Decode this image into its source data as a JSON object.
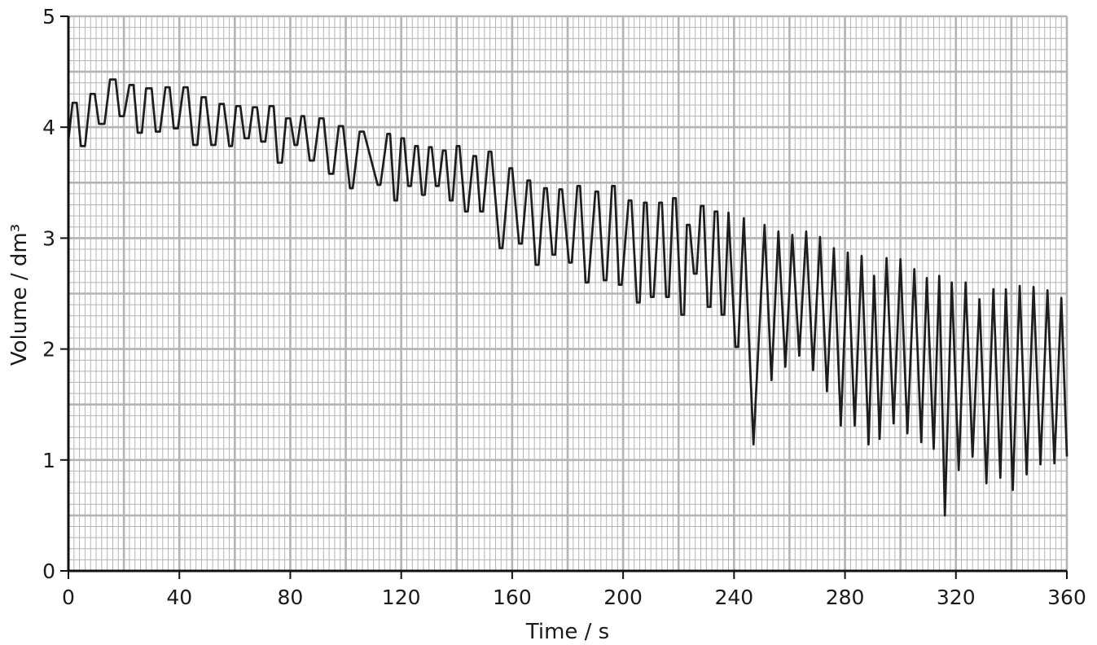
{
  "chart_data": {
    "type": "line",
    "xlabel": "Time / s",
    "ylabel": "Volume / dm³",
    "xlim": [
      0,
      360
    ],
    "ylim": [
      0,
      5
    ],
    "x_ticks": [
      "0",
      "40",
      "80",
      "120",
      "160",
      "200",
      "240",
      "280",
      "320",
      "360"
    ],
    "y_ticks": [
      "0",
      "1",
      "2",
      "3",
      "4",
      "5"
    ],
    "grid": "on",
    "grid_minor_step": {
      "x": 2,
      "y": 0.1
    },
    "grid_major_step": {
      "x": 20,
      "y": 0.5
    },
    "colors": {
      "line": "#1e1e1e",
      "grid": "#b4b4b4",
      "axis": "#111111"
    },
    "series": [
      {
        "points": [
          [
            0,
            3.88
          ],
          [
            1.5,
            4.22
          ],
          [
            3,
            4.22
          ],
          [
            4.5,
            3.83
          ],
          [
            6,
            3.83
          ],
          [
            8,
            4.3
          ],
          [
            9.5,
            4.3
          ],
          [
            11,
            4.03
          ],
          [
            13,
            4.03
          ],
          [
            15,
            4.43
          ],
          [
            17,
            4.43
          ],
          [
            18.5,
            4.1
          ],
          [
            20,
            4.1
          ],
          [
            22,
            4.38
          ],
          [
            23.5,
            4.38
          ],
          [
            25,
            3.95
          ],
          [
            26.5,
            3.95
          ],
          [
            28,
            4.35
          ],
          [
            30,
            4.35
          ],
          [
            31.5,
            3.96
          ],
          [
            33,
            3.96
          ],
          [
            35,
            4.36
          ],
          [
            36.5,
            4.36
          ],
          [
            38,
            3.99
          ],
          [
            39.5,
            3.99
          ],
          [
            41.5,
            4.36
          ],
          [
            43,
            4.36
          ],
          [
            45,
            3.84
          ],
          [
            46.5,
            3.84
          ],
          [
            48,
            4.27
          ],
          [
            49.5,
            4.27
          ],
          [
            51.5,
            3.84
          ],
          [
            53,
            3.84
          ],
          [
            54.5,
            4.21
          ],
          [
            56,
            4.21
          ],
          [
            58,
            3.83
          ],
          [
            59,
            3.83
          ],
          [
            60.5,
            4.19
          ],
          [
            62,
            4.19
          ],
          [
            63.5,
            3.9
          ],
          [
            65,
            3.9
          ],
          [
            66.5,
            4.18
          ],
          [
            68,
            4.18
          ],
          [
            69.5,
            3.87
          ],
          [
            71,
            3.87
          ],
          [
            72.5,
            4.19
          ],
          [
            74,
            4.19
          ],
          [
            75.5,
            3.68
          ],
          [
            77,
            3.68
          ],
          [
            78.5,
            4.08
          ],
          [
            80,
            4.08
          ],
          [
            81.5,
            3.84
          ],
          [
            82.5,
            3.84
          ],
          [
            84,
            4.1
          ],
          [
            85,
            4.1
          ],
          [
            87,
            3.7
          ],
          [
            88.5,
            3.7
          ],
          [
            90.5,
            4.08
          ],
          [
            92,
            4.08
          ],
          [
            94,
            3.58
          ],
          [
            95.5,
            3.58
          ],
          [
            97.5,
            4.01
          ],
          [
            99,
            4.01
          ],
          [
            101.5,
            3.45
          ],
          [
            102.5,
            3.45
          ],
          [
            105,
            3.96
          ],
          [
            106.5,
            3.96
          ],
          [
            111.5,
            3.48
          ],
          [
            112.5,
            3.48
          ],
          [
            115,
            3.94
          ],
          [
            116,
            3.94
          ],
          [
            117.5,
            3.34
          ],
          [
            118.5,
            3.34
          ],
          [
            120,
            3.9
          ],
          [
            121,
            3.9
          ],
          [
            122.5,
            3.47
          ],
          [
            123.5,
            3.47
          ],
          [
            125,
            3.83
          ],
          [
            126,
            3.83
          ],
          [
            127.5,
            3.39
          ],
          [
            128.5,
            3.39
          ],
          [
            130,
            3.82
          ],
          [
            131,
            3.82
          ],
          [
            132.5,
            3.47
          ],
          [
            133.5,
            3.47
          ],
          [
            135,
            3.79
          ],
          [
            136,
            3.79
          ],
          [
            137.5,
            3.34
          ],
          [
            138.5,
            3.34
          ],
          [
            140,
            3.83
          ],
          [
            141,
            3.83
          ],
          [
            143,
            3.24
          ],
          [
            144,
            3.24
          ],
          [
            146,
            3.74
          ],
          [
            147,
            3.74
          ],
          [
            148.5,
            3.24
          ],
          [
            149.5,
            3.24
          ],
          [
            151.5,
            3.78
          ],
          [
            152.5,
            3.78
          ],
          [
            155.5,
            2.91
          ],
          [
            156.5,
            2.91
          ],
          [
            159,
            3.63
          ],
          [
            160,
            3.63
          ],
          [
            162.5,
            2.95
          ],
          [
            163.5,
            2.95
          ],
          [
            165.5,
            3.52
          ],
          [
            166.5,
            3.52
          ],
          [
            168.5,
            2.76
          ],
          [
            169.5,
            2.76
          ],
          [
            171.5,
            3.45
          ],
          [
            172.5,
            3.45
          ],
          [
            174.5,
            2.85
          ],
          [
            175.5,
            2.85
          ],
          [
            177,
            3.44
          ],
          [
            178,
            3.44
          ],
          [
            180.5,
            2.78
          ],
          [
            181.5,
            2.78
          ],
          [
            183.5,
            3.47
          ],
          [
            184.5,
            3.47
          ],
          [
            186.5,
            2.6
          ],
          [
            187.5,
            2.6
          ],
          [
            190,
            3.42
          ],
          [
            191,
            3.42
          ],
          [
            193,
            2.62
          ],
          [
            194,
            2.62
          ],
          [
            196,
            3.47
          ],
          [
            197,
            3.47
          ],
          [
            198.5,
            2.58
          ],
          [
            199.5,
            2.58
          ],
          [
            202,
            3.34
          ],
          [
            203,
            3.34
          ],
          [
            205,
            2.42
          ],
          [
            206,
            2.42
          ],
          [
            207.5,
            3.32
          ],
          [
            208.5,
            3.32
          ],
          [
            210,
            2.47
          ],
          [
            211,
            2.47
          ],
          [
            213,
            3.32
          ],
          [
            214,
            3.32
          ],
          [
            215.5,
            2.47
          ],
          [
            216.5,
            2.47
          ],
          [
            218,
            3.36
          ],
          [
            219,
            3.36
          ],
          [
            221,
            2.31
          ],
          [
            222,
            2.31
          ],
          [
            223,
            3.12
          ],
          [
            224,
            3.12
          ],
          [
            225.5,
            2.68
          ],
          [
            226.5,
            2.68
          ],
          [
            228,
            3.29
          ],
          [
            229,
            3.29
          ],
          [
            230.5,
            2.38
          ],
          [
            231.5,
            2.38
          ],
          [
            233,
            3.24
          ],
          [
            234,
            3.24
          ],
          [
            235.5,
            2.31
          ],
          [
            236.5,
            2.31
          ],
          [
            238,
            3.23
          ],
          [
            240.5,
            2.02
          ],
          [
            241.5,
            2.02
          ],
          [
            243.5,
            3.18
          ],
          [
            247,
            1.14
          ],
          [
            251,
            3.12
          ],
          [
            253.5,
            1.72
          ],
          [
            256,
            3.06
          ],
          [
            258.5,
            1.84
          ],
          [
            261,
            3.03
          ],
          [
            263.5,
            1.94
          ],
          [
            266,
            3.06
          ],
          [
            268.5,
            1.81
          ],
          [
            271,
            3.01
          ],
          [
            273.5,
            1.62
          ],
          [
            276,
            2.91
          ],
          [
            278.5,
            1.31
          ],
          [
            281,
            2.87
          ],
          [
            283.5,
            1.31
          ],
          [
            286,
            2.84
          ],
          [
            288.5,
            1.14
          ],
          [
            290.5,
            2.66
          ],
          [
            292.5,
            1.19
          ],
          [
            295,
            2.82
          ],
          [
            297.5,
            1.33
          ],
          [
            300,
            2.81
          ],
          [
            302.5,
            1.24
          ],
          [
            305,
            2.72
          ],
          [
            307.5,
            1.16
          ],
          [
            309.5,
            2.64
          ],
          [
            312,
            1.1
          ],
          [
            314,
            2.66
          ],
          [
            316,
            0.5
          ],
          [
            318.5,
            2.6
          ],
          [
            321,
            0.91
          ],
          [
            323.5,
            2.6
          ],
          [
            326,
            1.03
          ],
          [
            328.5,
            2.45
          ],
          [
            331,
            0.79
          ],
          [
            333.5,
            2.54
          ],
          [
            336,
            0.84
          ],
          [
            338,
            2.54
          ],
          [
            340.5,
            0.73
          ],
          [
            343,
            2.57
          ],
          [
            345.5,
            0.87
          ],
          [
            348,
            2.56
          ],
          [
            350.5,
            0.96
          ],
          [
            353,
            2.53
          ],
          [
            355.5,
            0.97
          ],
          [
            358,
            2.46
          ],
          [
            360,
            1.04
          ]
        ]
      }
    ]
  }
}
